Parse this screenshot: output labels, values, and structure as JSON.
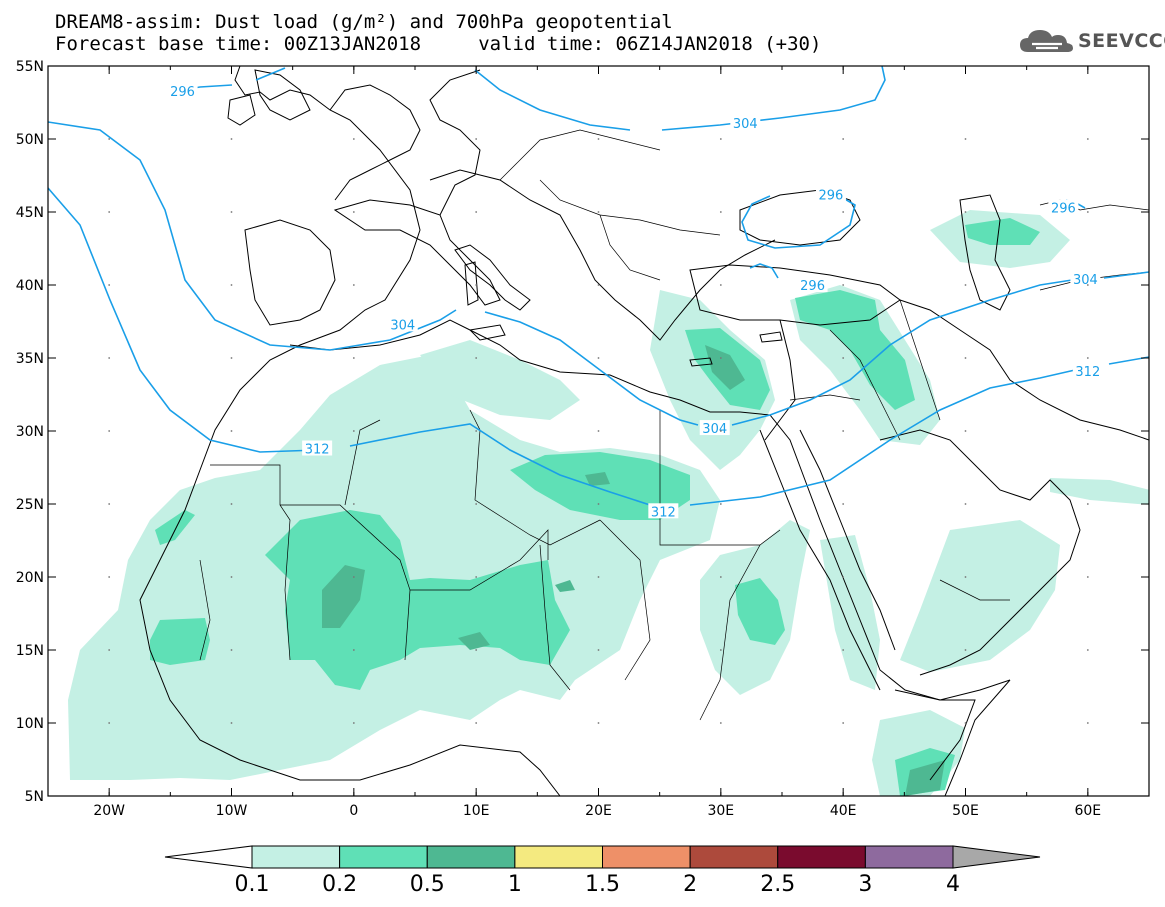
{
  "title_line1": "DREAM8-assim: Dust load (g/m²) and 700hPa geopotential",
  "title_line2": "Forecast base time: 00Z13JAN2018     valid time: 06Z14JAN2018 (+30)",
  "brand": "SEEVCCC",
  "map": {
    "lon_range": [
      -25,
      65
    ],
    "lat_range": [
      5,
      55
    ],
    "lat_ticks": [
      "55N",
      "50N",
      "45N",
      "40N",
      "35N",
      "30N",
      "25N",
      "20N",
      "15N",
      "10N",
      "5N"
    ],
    "lon_ticks": [
      "20W",
      "10W",
      "0",
      "10E",
      "20E",
      "30E",
      "40E",
      "50E",
      "60E"
    ],
    "contour_color": "#1a9fe8",
    "contour_labels": [
      {
        "text": "296",
        "lon": -14,
        "lat": 53.3
      },
      {
        "text": "304",
        "lon": 32,
        "lat": 51.1
      },
      {
        "text": "296",
        "lon": 39,
        "lat": 46.2
      },
      {
        "text": "296",
        "lon": 58,
        "lat": 45.3
      },
      {
        "text": "296",
        "lon": 37.5,
        "lat": 40
      },
      {
        "text": "304",
        "lon": 59.8,
        "lat": 40.4
      },
      {
        "text": "304",
        "lon": 4,
        "lat": 37.3
      },
      {
        "text": "312",
        "lon": 60,
        "lat": 34.1
      },
      {
        "text": "304",
        "lon": 29.5,
        "lat": 30.2
      },
      {
        "text": "312",
        "lon": -3,
        "lat": 28.8
      },
      {
        "text": "312",
        "lon": 25.3,
        "lat": 24.5
      }
    ]
  },
  "colorbar": {
    "levels": [
      "0.1",
      "0.2",
      "0.5",
      "1",
      "1.5",
      "2",
      "2.5",
      "3",
      "4"
    ],
    "colors": [
      "#c4f0e4",
      "#5fe0b6",
      "#4eb892",
      "#f4ea80",
      "#ee9068",
      "#ad4a3c",
      "#7a0b2e",
      "#8e6a9e",
      "#a8a8a8"
    ],
    "under_color": "#ffffff"
  }
}
